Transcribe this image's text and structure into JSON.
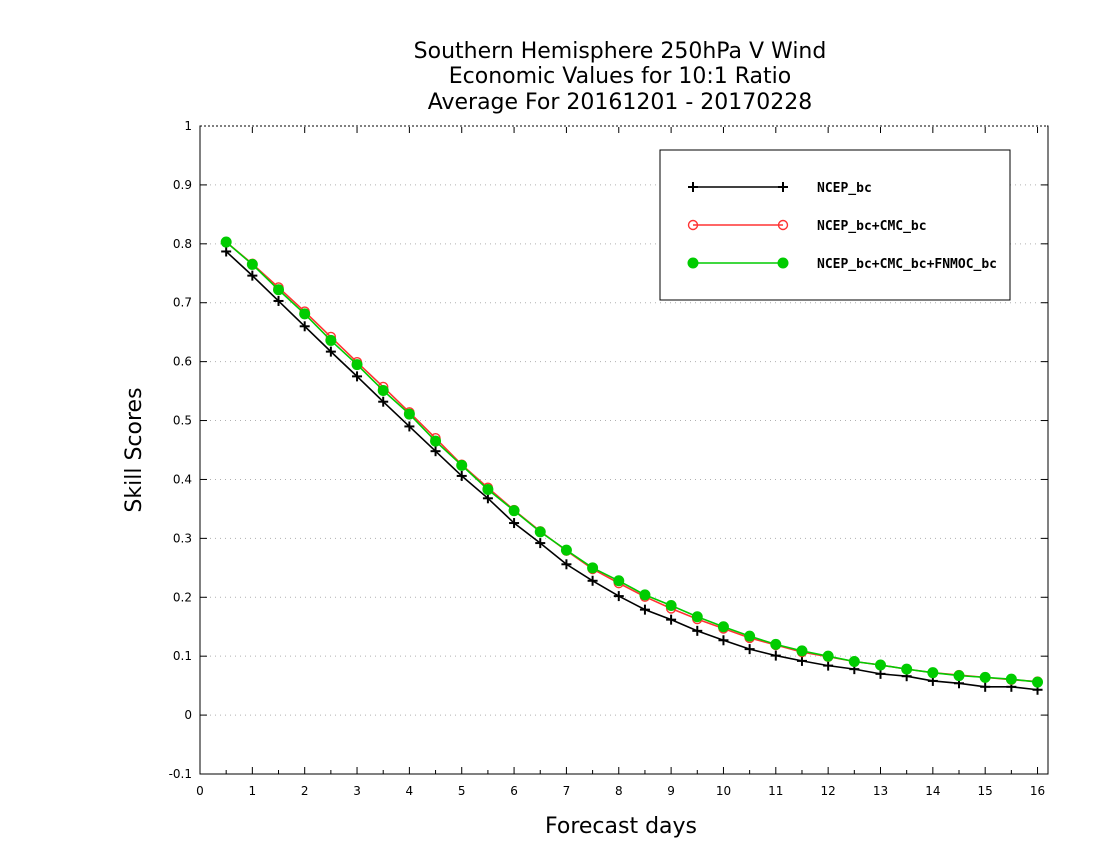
{
  "chart_data": {
    "type": "line",
    "title_lines": [
      "Southern Hemisphere 250hPa V Wind",
      "Economic Values for 10:1 Ratio",
      "Average For 20161201 - 20170228"
    ],
    "xlabel": "Forecast days",
    "ylabel": "Skill Scores",
    "xlim": [
      0,
      16.2
    ],
    "ylim": [
      -0.1,
      1
    ],
    "xticks": [
      0,
      1,
      2,
      3,
      4,
      5,
      6,
      7,
      8,
      9,
      10,
      11,
      12,
      13,
      14,
      15,
      16
    ],
    "yticks": [
      -0.1,
      0,
      0.1,
      0.2,
      0.3,
      0.4,
      0.5,
      0.6,
      0.7,
      0.8,
      0.9,
      1
    ],
    "ytick_labels": [
      "-0.1",
      "0",
      "0.1",
      "0.2",
      "0.3",
      "0.4",
      "0.5",
      "0.6",
      "0.7",
      "0.8",
      "0.9",
      "1"
    ],
    "grid": true,
    "legend_position": "top-right",
    "x": [
      0.5,
      1,
      1.5,
      2,
      2.5,
      3,
      3.5,
      4,
      4.5,
      5,
      5.5,
      6,
      6.5,
      7,
      7.5,
      8,
      8.5,
      9,
      9.5,
      10,
      10.5,
      11,
      11.5,
      12,
      12.5,
      13,
      13.5,
      14,
      14.5,
      15,
      15.5,
      16
    ],
    "series": [
      {
        "name": "NCEP_bc",
        "color": "#000000",
        "marker": "plus",
        "values": [
          0.787,
          0.746,
          0.703,
          0.66,
          0.617,
          0.575,
          0.532,
          0.49,
          0.448,
          0.406,
          0.368,
          0.326,
          0.292,
          0.256,
          0.228,
          0.202,
          0.179,
          0.162,
          0.143,
          0.127,
          0.112,
          0.101,
          0.092,
          0.084,
          0.078,
          0.07,
          0.066,
          0.058,
          0.054,
          0.048,
          0.048,
          0.043
        ]
      },
      {
        "name": "NCEP_bc+CMC_bc",
        "color": "#ff3333",
        "marker": "open-circle",
        "values": [
          0.803,
          0.766,
          0.726,
          0.685,
          0.642,
          0.599,
          0.557,
          0.514,
          0.47,
          0.425,
          0.386,
          0.348,
          0.312,
          0.279,
          0.248,
          0.224,
          0.201,
          0.181,
          0.163,
          0.147,
          0.131,
          0.119,
          0.107,
          0.099,
          0.091,
          0.085,
          0.078,
          0.072,
          0.068,
          0.064,
          0.06,
          0.057
        ]
      },
      {
        "name": "NCEP_bc+CMC_bc+FNMOC_bc",
        "color": "#00cc00",
        "marker": "filled-circle",
        "values": [
          0.803,
          0.765,
          0.722,
          0.681,
          0.636,
          0.595,
          0.551,
          0.511,
          0.465,
          0.424,
          0.383,
          0.347,
          0.311,
          0.28,
          0.25,
          0.228,
          0.204,
          0.186,
          0.167,
          0.15,
          0.134,
          0.12,
          0.109,
          0.1,
          0.091,
          0.085,
          0.078,
          0.072,
          0.067,
          0.064,
          0.061,
          0.056
        ]
      }
    ]
  }
}
